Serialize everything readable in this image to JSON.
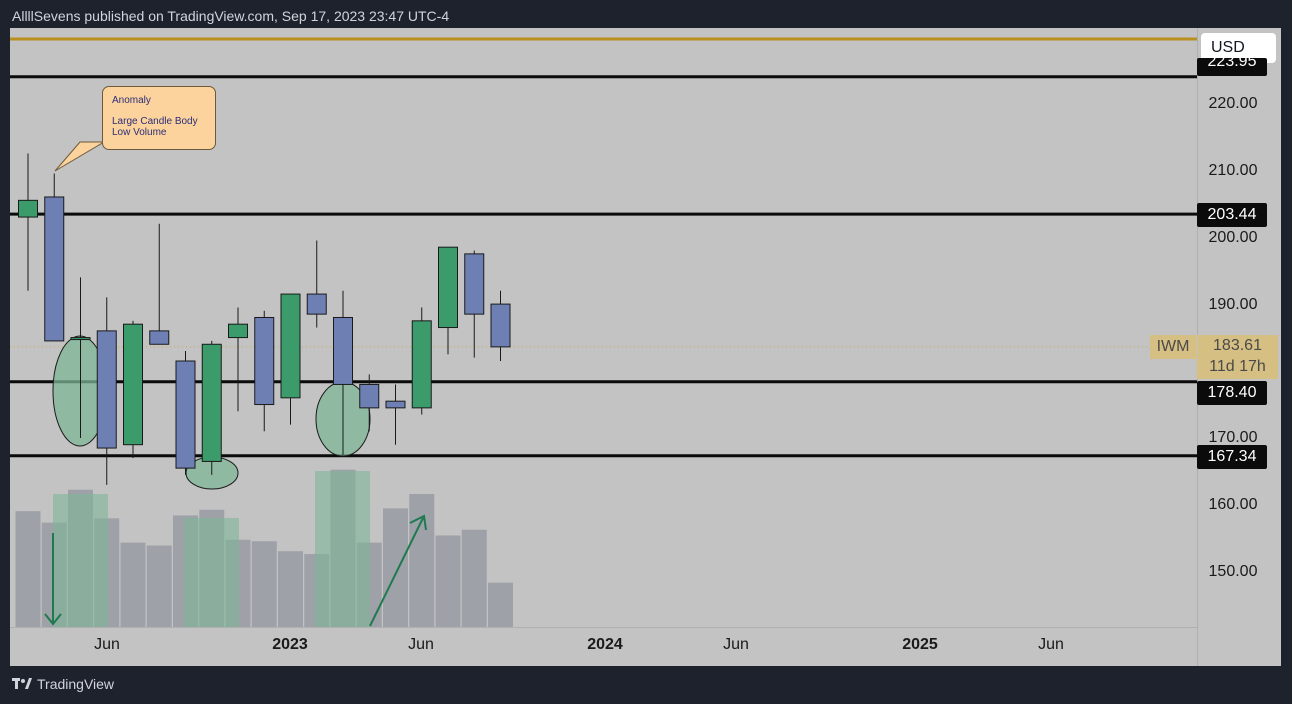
{
  "header": {
    "publisher_line": "AllllSevens published on TradingView.com, Sep 17, 2023 23:47 UTC-4"
  },
  "footer": {
    "brand": "TradingView",
    "logo_icon": "tradingview-logo-icon"
  },
  "axis": {
    "currency": "USD",
    "price_labels": [
      "220.00",
      "210.00",
      "200.00",
      "190.00",
      "170.00",
      "160.00",
      "150.00"
    ],
    "level_tags": [
      "203.44",
      "178.40",
      "167.34"
    ],
    "top_partial_tag": "223.95",
    "last_price": "183.61",
    "countdown": "11d 17h",
    "symbol": "IWM"
  },
  "callout": {
    "title": "Anomaly",
    "line1": "Large Candle Body",
    "line2": "Low Volume"
  },
  "colors": {
    "up": "#3c9b6a",
    "down": "#6e7fb4",
    "level_line": "#0b0b0b",
    "gold_line": "#b98f1f",
    "volume": "#9ea1a8",
    "volume_highlight": "#7fb597",
    "ellipse": "#7fb597"
  },
  "chart_data": {
    "type": "candlestick",
    "symbol": "IWM",
    "interval": "1 month",
    "ylim": [
      141.5,
      233
    ],
    "x_ticks": [
      "Jun",
      "2023",
      "Jun",
      "2024",
      "Jun",
      "2025",
      "Jun"
    ],
    "candles": [
      {
        "open": 203.0,
        "high": 212.5,
        "low": 192.0,
        "close": 205.5
      },
      {
        "open": 206.0,
        "high": 209.5,
        "low": 184.5,
        "close": 184.5
      },
      {
        "open": 185.0,
        "high": 194.0,
        "low": 170.0,
        "close": 185.0
      },
      {
        "open": 186.0,
        "high": 191.0,
        "low": 163.0,
        "close": 168.5
      },
      {
        "open": 169.0,
        "high": 187.5,
        "low": 167.0,
        "close": 187.0
      },
      {
        "open": 186.0,
        "high": 202.0,
        "low": 184.0,
        "close": 184.0
      },
      {
        "open": 181.5,
        "high": 183.0,
        "low": 164.5,
        "close": 165.5
      },
      {
        "open": 166.5,
        "high": 184.5,
        "low": 164.5,
        "close": 184.0
      },
      {
        "open": 185.0,
        "high": 189.5,
        "low": 174.0,
        "close": 187.0
      },
      {
        "open": 188.0,
        "high": 189.0,
        "low": 171.0,
        "close": 175.0
      },
      {
        "open": 176.0,
        "high": 191.5,
        "low": 172.0,
        "close": 191.5
      },
      {
        "open": 191.5,
        "high": 199.5,
        "low": 186.5,
        "close": 188.5
      },
      {
        "open": 188.0,
        "high": 192.0,
        "low": 167.5,
        "close": 178.0
      },
      {
        "open": 178.0,
        "high": 179.5,
        "low": 171.0,
        "close": 174.5
      },
      {
        "open": 175.5,
        "high": 178.0,
        "low": 169.0,
        "close": 174.5
      },
      {
        "open": 174.5,
        "high": 189.5,
        "low": 173.5,
        "close": 187.5
      },
      {
        "open": 186.5,
        "high": 198.5,
        "low": 182.5,
        "close": 198.5
      },
      {
        "open": 197.5,
        "high": 198.0,
        "low": 182.0,
        "close": 188.5
      },
      {
        "open": 190.0,
        "high": 192.0,
        "low": 181.5,
        "close": 183.61
      }
    ],
    "volume_relative": [
      0.81,
      0.73,
      0.96,
      0.76,
      0.59,
      0.57,
      0.78,
      0.82,
      0.61,
      0.6,
      0.53,
      0.51,
      1.1,
      0.59,
      0.83,
      0.93,
      0.64,
      0.68,
      0.31
    ],
    "volume_highlight_index": [
      1,
      6,
      12
    ],
    "horizontal_levels": [
      223.95,
      203.44,
      178.4,
      167.34
    ],
    "gold_level": 232.5
  }
}
